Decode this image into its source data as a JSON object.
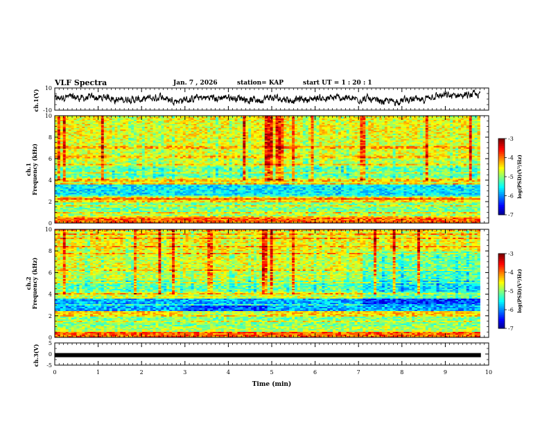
{
  "header": {
    "title": "VLF Spectra",
    "date": "Jan. 7 , 2026",
    "station": "station= KAP",
    "start": "start  UT =  1 : 20 : 1"
  },
  "chart_data": [
    {
      "type": "line",
      "name": "ch1-waveform",
      "ylabel": "ch.1(V)",
      "ylim": [
        -10,
        10
      ],
      "yticks": [
        "10",
        "-10"
      ],
      "xlim": [
        0,
        10
      ]
    },
    {
      "type": "heatmap",
      "name": "ch1-spectrogram",
      "ylabel_line1": "ch.1",
      "ylabel_line2": "Frequency (kHz)",
      "ylim": [
        0,
        10
      ],
      "yticks": [
        "0",
        "2",
        "4",
        "6",
        "8",
        "10"
      ],
      "xlim": [
        0,
        9.8
      ],
      "colorbar": {
        "label": "log(PSD)(V²/Hz)",
        "range": [
          -7,
          -3
        ],
        "ticks": [
          "-3",
          "-4",
          "-5",
          "-6",
          "-7"
        ]
      }
    },
    {
      "type": "heatmap",
      "name": "ch2-spectrogram",
      "ylabel_line1": "ch.2",
      "ylabel_line2": "Frequency (kHz)",
      "ylim": [
        0,
        10
      ],
      "yticks": [
        "0",
        "2",
        "4",
        "6",
        "8",
        "10"
      ],
      "xlim": [
        0,
        9.8
      ],
      "colorbar": {
        "label": "log(PSD)(V²/Hz)",
        "range": [
          -7,
          -3
        ],
        "ticks": [
          "-3",
          "-4",
          "-5",
          "-6",
          "-7"
        ]
      }
    },
    {
      "type": "line",
      "name": "ch3-waveform",
      "ylabel": "ch.3(V)",
      "ylim": [
        -5,
        5
      ],
      "yticks": [
        "5",
        "0",
        "-5"
      ],
      "xlim": [
        0,
        10
      ],
      "level": -0.5
    }
  ],
  "xaxis": {
    "label": "Time (min)",
    "ticks": [
      "0",
      "1",
      "2",
      "3",
      "4",
      "5",
      "6",
      "7",
      "8",
      "9",
      "10"
    ],
    "range": [
      0,
      10
    ]
  }
}
